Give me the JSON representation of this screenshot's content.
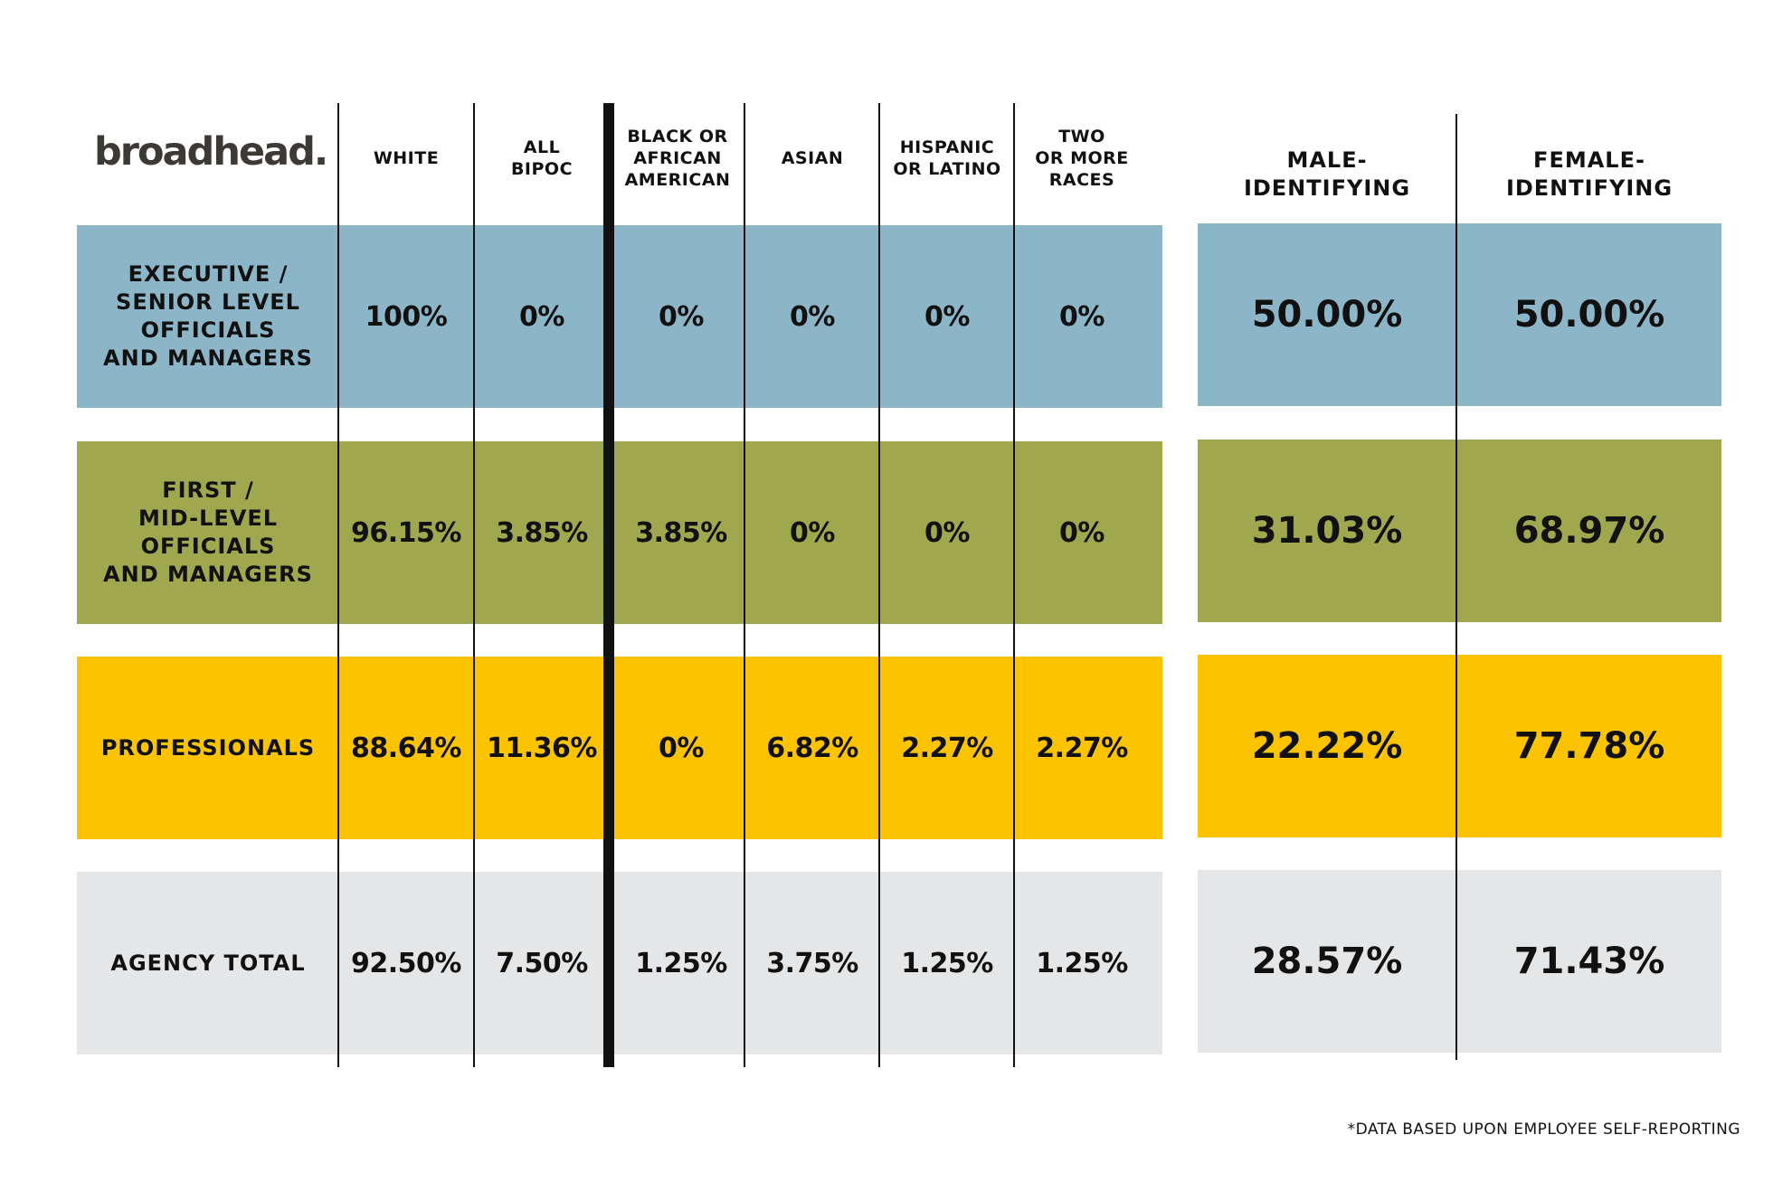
{
  "logo": "broadhead.",
  "race_columns": [
    "WHITE",
    "ALL\nBIPOC",
    "BLACK OR\nAFRICAN\nAMERICAN",
    "ASIAN",
    "HISPANIC\nOR LATINO",
    "TWO\nOR MORE\nRACES"
  ],
  "gender_columns": [
    "MALE-\nIDENTIFYING",
    "FEMALE-\nIDENTIFYING"
  ],
  "colors": {
    "executive": "#8db5c8",
    "first_mid": "#9fa84f",
    "professionals": "#fcc400",
    "agency_total": "#e5e6e7"
  },
  "rows": [
    {
      "label": "EXECUTIVE /\nSENIOR LEVEL\nOFFICIALS\nAND MANAGERS",
      "race": [
        "100%",
        "0%",
        "0%",
        "0%",
        "0%",
        "0%"
      ],
      "gender": [
        "50.00%",
        "50.00%"
      ]
    },
    {
      "label": "FIRST /\nMID-LEVEL\nOFFICIALS\nAND MANAGERS",
      "race": [
        "96.15%",
        "3.85%",
        "3.85%",
        "0%",
        "0%",
        "0%"
      ],
      "gender": [
        "31.03%",
        "68.97%"
      ]
    },
    {
      "label": "PROFESSIONALS",
      "race": [
        "88.64%",
        "11.36%",
        "0%",
        "6.82%",
        "2.27%",
        "2.27%"
      ],
      "gender": [
        "22.22%",
        "77.78%"
      ]
    },
    {
      "label": "AGENCY  TOTAL",
      "race": [
        "92.50%",
        "7.50%",
        "1.25%",
        "3.75%",
        "1.25%",
        "1.25%"
      ],
      "gender": [
        "28.57%",
        "71.43%"
      ]
    }
  ],
  "footnote": "*DATA BASED UPON EMPLOYEE SELF-REPORTING"
}
